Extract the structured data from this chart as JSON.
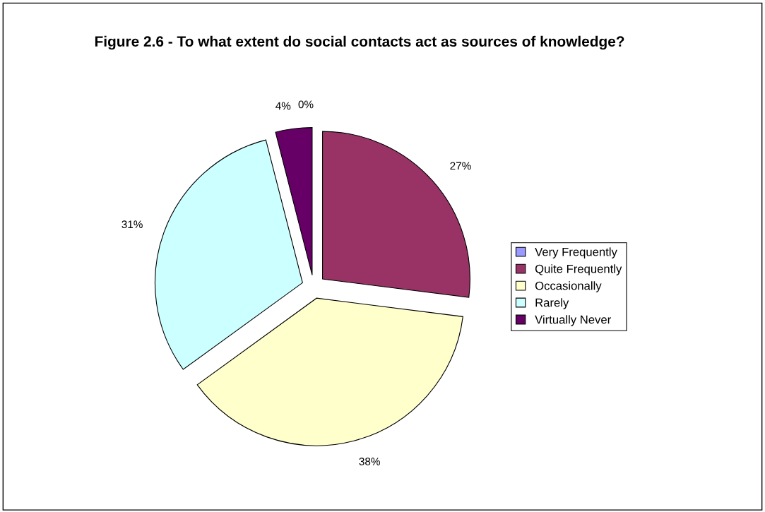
{
  "chart_data": {
    "type": "pie",
    "title": "Figure 2.6 - To what extent do social contacts act as sources of knowledge?",
    "categories": [
      "Very Frequently",
      "Quite Frequently",
      "Occasionally",
      "Rarely",
      "Virtually Never"
    ],
    "values": [
      0,
      27,
      38,
      31,
      4
    ],
    "colors": [
      "#9999ff",
      "#993366",
      "#ffffcc",
      "#ccffff",
      "#660066"
    ],
    "value_labels": [
      "0%",
      "27%",
      "38%",
      "31%",
      "4%"
    ],
    "legend": "right"
  }
}
